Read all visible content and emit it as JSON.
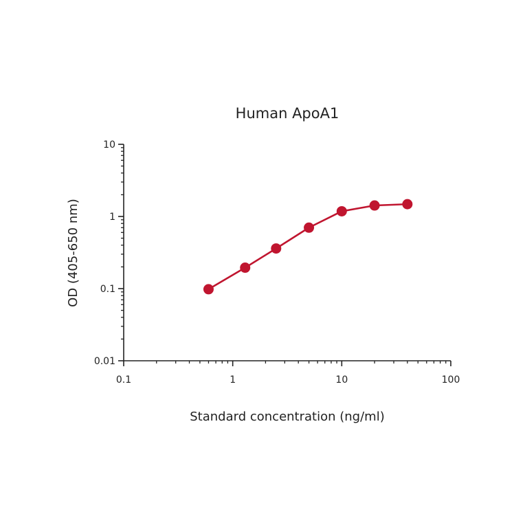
{
  "chart_data": {
    "type": "line",
    "title": "Human ApoA1",
    "xlabel": "Standard concentration (ng/ml)",
    "ylabel": "OD (405-650 nm)",
    "xscale": "log",
    "yscale": "log",
    "xlim": [
      0.1,
      100
    ],
    "ylim": [
      0.01,
      10
    ],
    "xticks": [
      {
        "value": 0.1,
        "label": "0.1"
      },
      {
        "value": 1,
        "label": "1"
      },
      {
        "value": 10,
        "label": "10"
      },
      {
        "value": 100,
        "label": "100"
      }
    ],
    "yticks": [
      {
        "value": 0.01,
        "label": "0.01"
      },
      {
        "value": 0.1,
        "label": "0.1"
      },
      {
        "value": 1,
        "label": "1"
      },
      {
        "value": 10,
        "label": "10"
      }
    ],
    "grid": false,
    "series": [
      {
        "color": "#c0152f",
        "x": [
          0.6,
          1.3,
          2.5,
          5,
          10,
          20,
          40
        ],
        "y": [
          0.098,
          0.195,
          0.36,
          0.7,
          1.18,
          1.42,
          1.48
        ]
      }
    ]
  }
}
